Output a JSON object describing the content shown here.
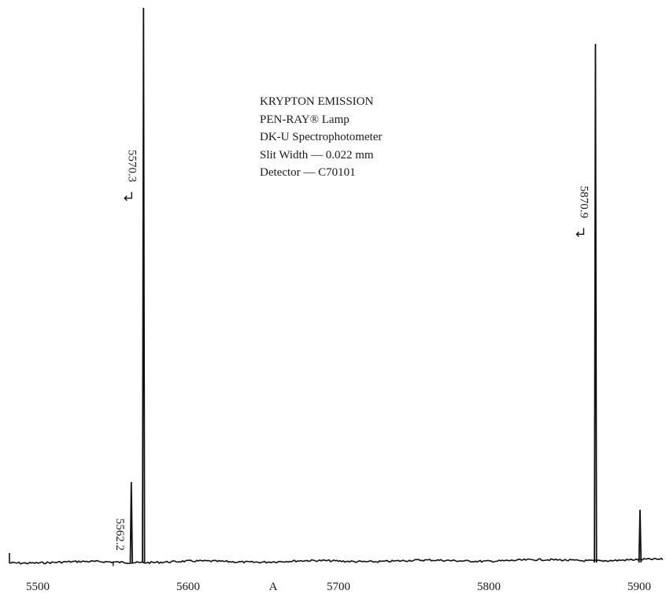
{
  "chart_data": {
    "type": "line",
    "title": "",
    "xlabel": "A",
    "ylabel": "",
    "xlim": [
      5482,
      5915
    ],
    "ylim": [
      0,
      100
    ],
    "x_ticks": [
      {
        "value": 5500,
        "label": "5500"
      },
      {
        "value": 5600,
        "label": "5600"
      },
      {
        "value": 5700,
        "label": "5700"
      },
      {
        "value": 5800,
        "label": "5800"
      },
      {
        "value": 5900,
        "label": "5900"
      }
    ],
    "annotations": [
      "KRYPTON EMISSION",
      "PEN-RAY® Lamp",
      "DK-U Spectrophotometer",
      "Slit Width — 0.022 mm",
      "Detector — C70101"
    ],
    "peaks": [
      {
        "x": 5562.2,
        "height": 14.5,
        "label": "5562.2",
        "marker": "dash"
      },
      {
        "x": 5570.3,
        "height": 100,
        "label": "5570.3",
        "marker": "arrow"
      },
      {
        "x": 5870.9,
        "height": 93.5,
        "label": "5870.9",
        "marker": "arrow"
      },
      {
        "x": 5900.5,
        "height": 9.5,
        "label": "",
        "marker": "none"
      }
    ],
    "grid": false,
    "line_color": "#111111"
  }
}
